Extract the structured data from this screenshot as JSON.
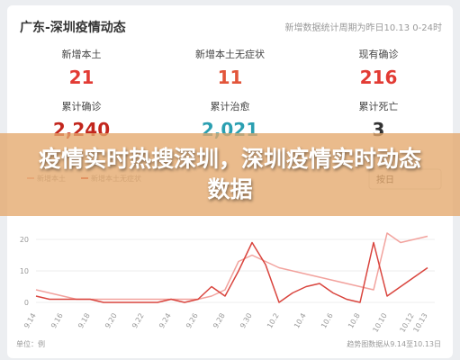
{
  "header": {
    "title": "广东-深圳疫情动态",
    "note": "新增数据统计周期为昨日10.13 0-24时"
  },
  "stats": [
    {
      "label": "新增本土",
      "value": "21",
      "color": "#e23b34"
    },
    {
      "label": "新增本土无症状",
      "value": "11",
      "color": "#e2553a"
    },
    {
      "label": "现有确诊",
      "value": "216",
      "color": "#e23b34"
    },
    {
      "label": "累计确诊",
      "value": "2,240",
      "color": "#c2261d"
    },
    {
      "label": "累计治愈",
      "value": "2,021",
      "color": "#2a9fb1"
    },
    {
      "label": "累计死亡",
      "value": "3",
      "color": "#333333"
    }
  ],
  "banner": "疫情实时热搜深圳，深圳疫情实时动态数据",
  "period": "按日",
  "chart_data": {
    "type": "line",
    "categories": [
      "9.14",
      null,
      "9.16",
      null,
      "9.18",
      null,
      "9.20",
      null,
      "9.22",
      null,
      "9.24",
      null,
      "9.26",
      null,
      "9.28",
      null,
      "9.30",
      null,
      "10.2",
      null,
      "10.4",
      null,
      "10.6",
      null,
      "10.8",
      null,
      "10.10",
      null,
      "10.12",
      "10.13"
    ],
    "series": [
      {
        "name": "新增本土",
        "color": "#f2a29d",
        "values": [
          4,
          3,
          2,
          1,
          1,
          1,
          1,
          1,
          1,
          1,
          1,
          1,
          1,
          2,
          4,
          13,
          15,
          13,
          11,
          10,
          9,
          8,
          7,
          6,
          5,
          4,
          22,
          19,
          20,
          21
        ]
      },
      {
        "name": "新增本土无症状",
        "color": "#d9443d",
        "values": [
          2,
          1,
          1,
          1,
          1,
          0,
          0,
          0,
          0,
          0,
          1,
          0,
          1,
          5,
          2,
          10,
          19,
          12,
          0,
          3,
          5,
          6,
          3,
          1,
          0,
          19,
          2,
          5,
          8,
          11
        ]
      }
    ],
    "ylim": [
      0,
      20
    ],
    "yticks": [
      0,
      10,
      20
    ],
    "grid": true,
    "unit": "单位：例",
    "footnote": "趋势图数据从9.14至10.13日"
  }
}
